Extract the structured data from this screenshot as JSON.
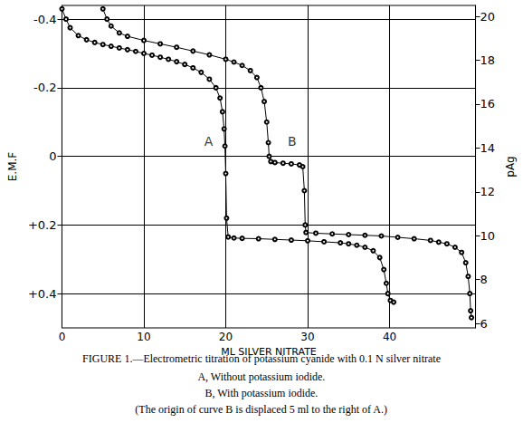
{
  "chart_data": {
    "type": "line",
    "title": "FIGURE 1.—Electrometric titration of potassium cyanide with 0.1 N silver nitrate",
    "caption": [
      "A, Without potassium iodide.",
      "B, With potassium iodide.",
      "(The origin of curve B is displaced 5 ml to the right of A.)"
    ],
    "x_label": "ML SILVER NITRATE",
    "y_label": "E.M.F",
    "y2_label": "pAg",
    "xlim": [
      0,
      50.5
    ],
    "xticks": [
      0,
      10,
      20,
      30,
      40
    ],
    "ylim": [
      0.5,
      -0.44
    ],
    "yticks": [
      -0.4,
      -0.2,
      0,
      {
        "value": 0.2,
        "label": "+0.2"
      },
      {
        "value": 0.4,
        "label": "+0.4"
      }
    ],
    "y2lim": [
      5.8,
      20.5
    ],
    "y2ticks": [
      6,
      8,
      10,
      12,
      14,
      16,
      18,
      20
    ],
    "grid": true,
    "marker": "open_circle",
    "series": [
      {
        "name": "A",
        "color": "#000000",
        "x": [
          0,
          0.5,
          1,
          2,
          3,
          4,
          5,
          6,
          7,
          8,
          9,
          10,
          11,
          12,
          13,
          14,
          15,
          16,
          17,
          18,
          18.8,
          19.3,
          19.6,
          19.8,
          19.9,
          20,
          20.1,
          20.3,
          21,
          22,
          24,
          26,
          28,
          30,
          32,
          34,
          35,
          36,
          37,
          38,
          38.8,
          39.3,
          39.6,
          39.8,
          40.1,
          40.5
        ],
        "values": [
          -0.43,
          -0.4,
          -0.375,
          -0.352,
          -0.34,
          -0.332,
          -0.326,
          -0.321,
          -0.316,
          -0.311,
          -0.306,
          -0.3,
          -0.295,
          -0.289,
          -0.283,
          -0.276,
          -0.268,
          -0.258,
          -0.245,
          -0.225,
          -0.2,
          -0.17,
          -0.13,
          -0.08,
          -0.03,
          0.05,
          0.18,
          0.235,
          0.238,
          0.239,
          0.24,
          0.242,
          0.244,
          0.246,
          0.249,
          0.252,
          0.255,
          0.259,
          0.265,
          0.275,
          0.295,
          0.33,
          0.37,
          0.4,
          0.42,
          0.425
        ]
      },
      {
        "name": "B",
        "color": "#000000",
        "x": [
          5,
          5.5,
          6,
          7,
          8,
          10,
          12,
          14,
          16,
          18,
          20,
          21,
          22,
          23,
          23.8,
          24.3,
          24.7,
          25,
          25.2,
          25.3,
          25.5,
          26,
          27,
          28,
          29,
          29.4,
          29.6,
          29.7,
          29.8,
          31,
          33,
          35,
          37,
          39,
          41,
          43,
          45,
          46,
          47,
          48,
          48.8,
          49.3,
          49.6,
          49.8,
          49.9,
          50
        ],
        "values": [
          -0.43,
          -0.4,
          -0.38,
          -0.36,
          -0.35,
          -0.338,
          -0.328,
          -0.318,
          -0.307,
          -0.296,
          -0.283,
          -0.275,
          -0.265,
          -0.25,
          -0.23,
          -0.2,
          -0.16,
          -0.1,
          -0.04,
          0.0,
          0.015,
          0.018,
          0.02,
          0.022,
          0.025,
          0.03,
          0.1,
          0.2,
          0.222,
          0.224,
          0.226,
          0.228,
          0.23,
          0.232,
          0.236,
          0.24,
          0.245,
          0.25,
          0.255,
          0.265,
          0.28,
          0.31,
          0.35,
          0.4,
          0.45,
          0.47
        ]
      }
    ],
    "annotations": [
      {
        "text": "A",
        "x": 17.9,
        "y": -0.044
      },
      {
        "text": "B",
        "x": 28.1,
        "y": -0.044
      }
    ]
  }
}
